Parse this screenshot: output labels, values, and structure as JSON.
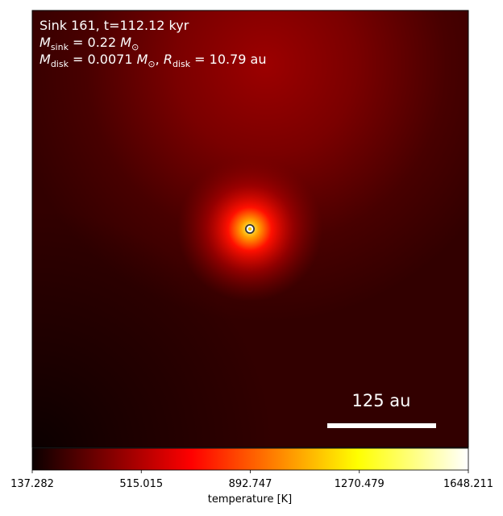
{
  "chart_data": {
    "type": "image",
    "annotations": [
      [
        {
          "text": "Sink 161, t=112.12 kyr"
        }
      ],
      [
        {
          "text": "M",
          "italic": true
        },
        {
          "text": "sink",
          "sub": true
        },
        {
          "text": " = 0.22 "
        },
        {
          "text": "M",
          "italic": true
        },
        {
          "text": "⊙",
          "sub": true
        }
      ],
      [
        {
          "text": "M",
          "italic": true
        },
        {
          "text": "disk",
          "sub": true
        },
        {
          "text": " = 0.0071 "
        },
        {
          "text": "M",
          "italic": true
        },
        {
          "text": "⊙",
          "sub": true
        },
        {
          "text": ", "
        },
        {
          "text": "R",
          "italic": true
        },
        {
          "text": "disk",
          "sub": true
        },
        {
          "text": " = 10.79 au"
        }
      ]
    ],
    "scalebar": "125 au",
    "colormap": "hot",
    "colorbar_label": "temperature [K]",
    "clim": [
      137.282,
      1648.211
    ],
    "cticks": [
      137.282,
      515.015,
      892.747,
      1270.479,
      1648.211
    ]
  }
}
